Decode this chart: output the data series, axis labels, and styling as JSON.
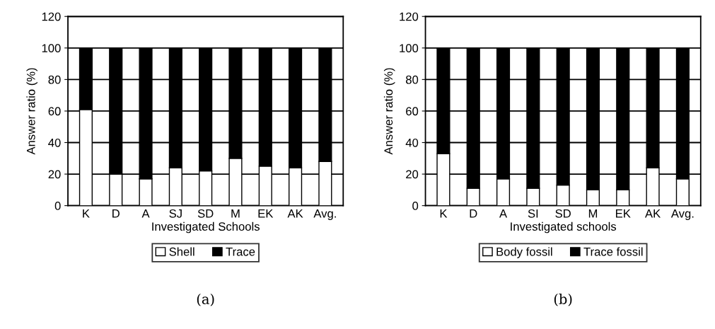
{
  "chart_data": [
    {
      "type": "bar",
      "stacked": true,
      "xlabel": "Investigated Schools",
      "ylabel": "Answer ratio (%)",
      "categories": [
        "K",
        "D",
        "A",
        "SJ",
        "SD",
        "M",
        "EK",
        "AK",
        "Avg."
      ],
      "series": [
        {
          "name": "Shell",
          "color": "#ffffff",
          "values": [
            61,
            20,
            17,
            24,
            22,
            30,
            25,
            24,
            28
          ]
        },
        {
          "name": "Trace",
          "color": "#000000",
          "values": [
            39,
            80,
            83,
            76,
            78,
            70,
            75,
            76,
            72
          ]
        }
      ],
      "ylim": [
        0,
        120
      ],
      "yticks": [
        0,
        20,
        40,
        60,
        80,
        100,
        120
      ],
      "grid": "y",
      "legend": "bottom",
      "annotations": [
        "(a)"
      ]
    },
    {
      "type": "bar",
      "stacked": true,
      "xlabel": "Investigated schools",
      "ylabel": "Answer ratio (%)",
      "categories": [
        "K",
        "D",
        "A",
        "SI",
        "SD",
        "M",
        "EK",
        "AK",
        "Avg."
      ],
      "series": [
        {
          "name": "Body fossil",
          "color": "#ffffff",
          "values": [
            33,
            11,
            17,
            11,
            13,
            10,
            10,
            24,
            17
          ]
        },
        {
          "name": "Trace fossil",
          "color": "#000000",
          "values": [
            67,
            89,
            83,
            89,
            87,
            90,
            90,
            76,
            83
          ]
        }
      ],
      "ylim": [
        0,
        120
      ],
      "yticks": [
        0,
        20,
        40,
        60,
        80,
        100,
        120
      ],
      "grid": "y",
      "legend": "bottom",
      "annotations": [
        "(b)"
      ]
    }
  ]
}
